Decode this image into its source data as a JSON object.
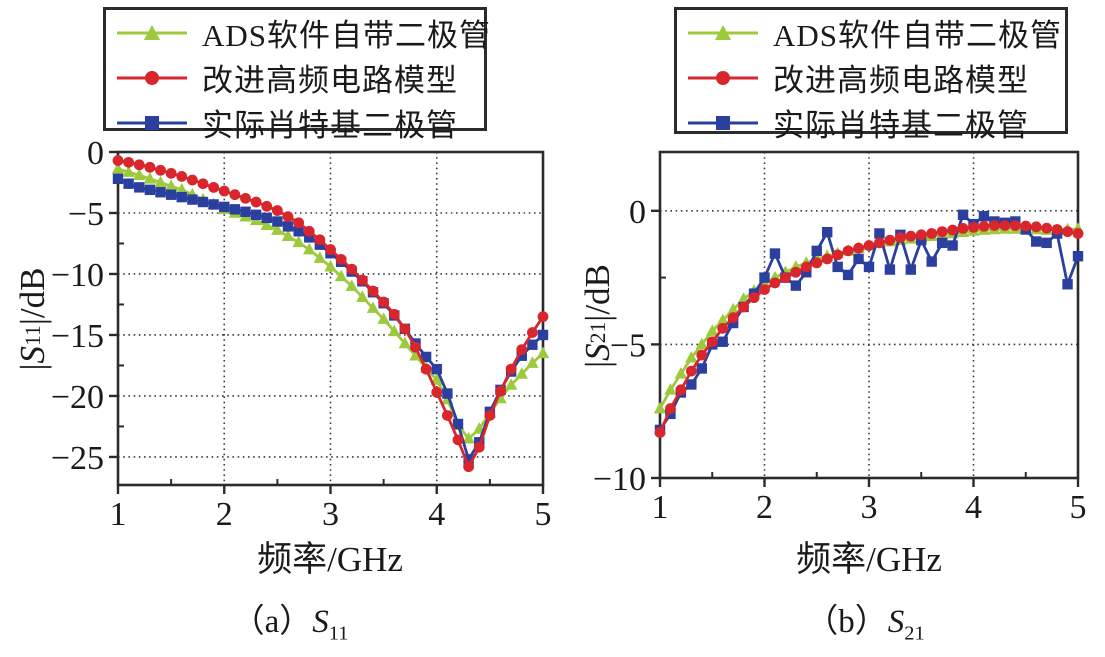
{
  "figure": {
    "background": "#ffffff",
    "frame_color": "#2b2b2b",
    "grid_color": "#3c3c3c",
    "text_color": "#1a1a1a"
  },
  "chart_data": [
    {
      "type": "line",
      "panel": "a",
      "caption": {
        "prefix": "（a）",
        "symbol": "S",
        "subscript": "11"
      },
      "xlabel": "频率/GHz",
      "ylabel": {
        "pre": "|",
        "symbol": "S",
        "sub": "11",
        "post": "|/dB"
      },
      "xlim": [
        1,
        5
      ],
      "ylim": [
        -27.3,
        0
      ],
      "xticks": [
        1,
        2,
        3,
        4,
        5
      ],
      "xtick_labels": [
        "1",
        "2",
        "3",
        "4",
        "5"
      ],
      "yticks": [
        0,
        -5,
        -10,
        -15,
        -20,
        -25
      ],
      "ytick_labels": [
        "0",
        "−5",
        "−10",
        "−15",
        "−20",
        "−25"
      ],
      "x_minor_step": 0.5,
      "y_minor_step": 2.5,
      "grid": "dotted",
      "legend_position": "top",
      "x": [
        1.0,
        1.1,
        1.2,
        1.3,
        1.4,
        1.5,
        1.6,
        1.7,
        1.8,
        1.9,
        2.0,
        2.1,
        2.2,
        2.3,
        2.4,
        2.5,
        2.6,
        2.7,
        2.8,
        2.9,
        3.0,
        3.1,
        3.2,
        3.3,
        3.4,
        3.5,
        3.6,
        3.7,
        3.8,
        3.9,
        4.0,
        4.1,
        4.2,
        4.3,
        4.4,
        4.5,
        4.6,
        4.7,
        4.8,
        4.9,
        5.0
      ],
      "series": [
        {
          "name": "ADS软件自带二极管",
          "color": "#9DC93C",
          "marker": "triangle",
          "values": [
            -1.4,
            -1.65,
            -1.9,
            -2.2,
            -2.5,
            -2.8,
            -3.1,
            -3.5,
            -3.9,
            -4.3,
            -4.7,
            -5.0,
            -5.3,
            -5.6,
            -6.0,
            -6.4,
            -6.9,
            -7.4,
            -8.0,
            -8.7,
            -9.4,
            -10.2,
            -11.0,
            -11.9,
            -12.8,
            -13.7,
            -14.7,
            -15.7,
            -16.7,
            -17.7,
            -18.7,
            -20.3,
            -22.4,
            -23.5,
            -22.7,
            -21.4,
            -20.2,
            -19.1,
            -18.2,
            -17.3,
            -16.5
          ]
        },
        {
          "name": "改进高频电路模型",
          "color": "#D8262C",
          "marker": "circle",
          "values": [
            -0.7,
            -0.85,
            -1.05,
            -1.25,
            -1.5,
            -1.75,
            -2.0,
            -2.3,
            -2.6,
            -2.9,
            -3.2,
            -3.5,
            -3.8,
            -4.1,
            -4.45,
            -4.8,
            -5.3,
            -5.8,
            -6.5,
            -7.2,
            -8.0,
            -8.8,
            -9.6,
            -10.5,
            -11.4,
            -12.3,
            -13.3,
            -14.5,
            -16.0,
            -17.8,
            -19.7,
            -21.6,
            -23.6,
            -25.8,
            -24.2,
            -21.6,
            -19.6,
            -17.8,
            -16.2,
            -14.8,
            -13.5
          ]
        },
        {
          "name": "实际肖特基二极管",
          "color": "#2B3F9E",
          "marker": "square",
          "values": [
            -2.2,
            -2.6,
            -2.9,
            -3.1,
            -3.3,
            -3.5,
            -3.7,
            -3.9,
            -4.1,
            -4.3,
            -4.5,
            -4.7,
            -4.9,
            -5.15,
            -5.4,
            -5.7,
            -6.1,
            -6.5,
            -7.0,
            -7.6,
            -8.3,
            -9.0,
            -9.8,
            -10.6,
            -11.5,
            -12.4,
            -13.4,
            -14.5,
            -15.7,
            -16.8,
            -17.8,
            -19.8,
            -22.3,
            -25.2,
            -23.8,
            -21.3,
            -19.5,
            -18.0,
            -16.7,
            -15.8,
            -15.0
          ]
        }
      ]
    },
    {
      "type": "line",
      "panel": "b",
      "caption": {
        "prefix": "（b）",
        "symbol": "S",
        "subscript": "21"
      },
      "xlabel": "频率/GHz",
      "ylabel": {
        "pre": "|",
        "symbol": "S",
        "sub": "21",
        "post": "|/dB"
      },
      "xlim": [
        1,
        5
      ],
      "ylim": [
        -10,
        2.2
      ],
      "xticks": [
        1,
        2,
        3,
        4,
        5
      ],
      "xtick_labels": [
        "1",
        "2",
        "3",
        "4",
        "5"
      ],
      "yticks": [
        0,
        -5,
        -10
      ],
      "ytick_labels": [
        "0",
        "−5",
        "−10"
      ],
      "x_minor_step": 0.5,
      "y_minor_step": 2.5,
      "grid": "dotted",
      "legend_position": "top",
      "x": [
        1.0,
        1.1,
        1.2,
        1.3,
        1.4,
        1.5,
        1.6,
        1.7,
        1.8,
        1.9,
        2.0,
        2.1,
        2.2,
        2.3,
        2.4,
        2.5,
        2.6,
        2.7,
        2.8,
        2.9,
        3.0,
        3.1,
        3.2,
        3.3,
        3.4,
        3.5,
        3.6,
        3.7,
        3.8,
        3.9,
        4.0,
        4.1,
        4.2,
        4.3,
        4.4,
        4.5,
        4.6,
        4.7,
        4.8,
        4.9,
        5.0
      ],
      "series": [
        {
          "name": "ADS软件自带二极管",
          "color": "#9DC93C",
          "marker": "triangle",
          "values": [
            -7.4,
            -6.7,
            -6.1,
            -5.5,
            -5.0,
            -4.5,
            -4.1,
            -3.7,
            -3.3,
            -3.0,
            -2.7,
            -2.5,
            -2.3,
            -2.1,
            -1.95,
            -1.8,
            -1.7,
            -1.6,
            -1.5,
            -1.4,
            -1.3,
            -1.2,
            -1.15,
            -1.1,
            -1.05,
            -1.0,
            -0.95,
            -0.9,
            -0.85,
            -0.8,
            -0.75,
            -0.72,
            -0.7,
            -0.68,
            -0.68,
            -0.68,
            -0.7,
            -0.72,
            -0.72,
            -0.7,
            -0.68
          ]
        },
        {
          "name": "改进高频电路模型",
          "color": "#D8262C",
          "marker": "circle",
          "values": [
            -8.3,
            -7.4,
            -6.7,
            -6.0,
            -5.4,
            -4.9,
            -4.4,
            -4.0,
            -3.6,
            -3.25,
            -2.95,
            -2.7,
            -2.5,
            -2.3,
            -2.1,
            -1.95,
            -1.8,
            -1.65,
            -1.5,
            -1.4,
            -1.3,
            -1.2,
            -1.1,
            -1.0,
            -0.95,
            -0.9,
            -0.85,
            -0.78,
            -0.72,
            -0.66,
            -0.62,
            -0.58,
            -0.55,
            -0.55,
            -0.55,
            -0.57,
            -0.6,
            -0.65,
            -0.7,
            -0.78,
            -0.85
          ]
        },
        {
          "name": "实际肖特基二极管",
          "color": "#2B3F9E",
          "marker": "square",
          "values": [
            -8.2,
            -7.6,
            -6.8,
            -6.5,
            -5.9,
            -5.0,
            -4.9,
            -4.2,
            -3.6,
            -3.1,
            -2.5,
            -1.6,
            -2.5,
            -2.8,
            -2.3,
            -1.5,
            -0.8,
            -2.1,
            -2.4,
            -1.8,
            -2.1,
            -0.85,
            -2.2,
            -0.9,
            -2.2,
            -1.1,
            -1.9,
            -1.2,
            -1.3,
            -0.15,
            -0.5,
            -0.2,
            -0.4,
            -0.45,
            -0.4,
            -0.7,
            -1.15,
            -1.2,
            -0.85,
            -2.75,
            -1.7
          ]
        }
      ]
    }
  ]
}
